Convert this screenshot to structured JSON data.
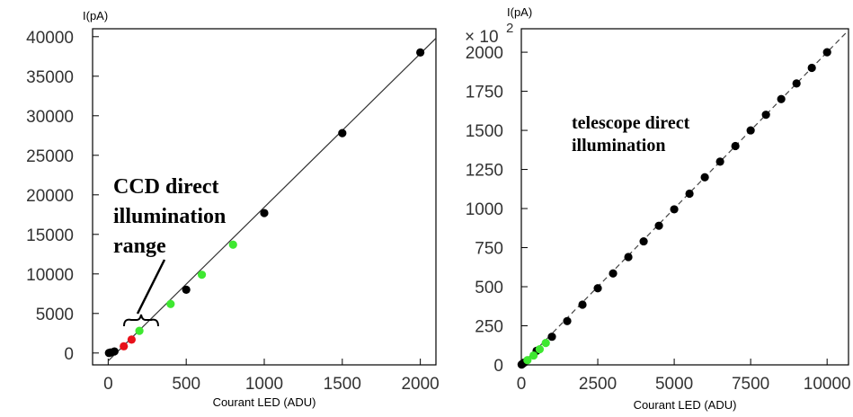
{
  "chart_data": [
    {
      "type": "scatter",
      "ylabel": "I(pA)",
      "xlabel": "Courant LED (ADU)",
      "xlim": [
        -100,
        2100
      ],
      "ylim": [
        -1500,
        41000
      ],
      "xticks": [
        "0",
        "500",
        "1000",
        "1500",
        "2000"
      ],
      "yticks": [
        "0",
        "5000",
        "10000",
        "15000",
        "20000",
        "25000",
        "30000",
        "35000",
        "40000"
      ],
      "annotation": [
        "CCD direct",
        "illumination",
        "range"
      ],
      "fit_line": {
        "style": "solid",
        "from": [
          0,
          -1000
        ],
        "to": [
          2100,
          39800
        ]
      },
      "series": [
        {
          "color": "#000000",
          "points": [
            [
              5,
              5
            ],
            [
              15,
              60
            ],
            [
              40,
              200
            ],
            [
              500,
              8000
            ],
            [
              1000,
              17700
            ],
            [
              1500,
              27800
            ],
            [
              2000,
              38000
            ]
          ]
        },
        {
          "color": "#e8101a",
          "points": [
            [
              100,
              850
            ],
            [
              150,
              1700
            ]
          ]
        },
        {
          "color": "#3ee830",
          "points": [
            [
              200,
              2800
            ],
            [
              400,
              6200
            ],
            [
              600,
              9900
            ],
            [
              800,
              13700
            ]
          ]
        }
      ],
      "grid": false
    },
    {
      "type": "scatter",
      "ylabel": "I(pA)",
      "xlabel": "Courant LED (ADU)",
      "multiplier": "× 10",
      "multiplier_exp": "2",
      "xlim": [
        0,
        10700
      ],
      "ylim": [
        0,
        2150
      ],
      "xticks": [
        "0",
        "2500",
        "5000",
        "7500",
        "10000"
      ],
      "yticks": [
        "0",
        "250",
        "500",
        "750",
        "1000",
        "1250",
        "1500",
        "1750",
        "2000"
      ],
      "annotation": [
        "telescope direct",
        "illumination"
      ],
      "fit_line": {
        "style": "dashed",
        "from": [
          0,
          0
        ],
        "to": [
          10700,
          2140
        ]
      },
      "series": [
        {
          "color": "#000000",
          "points": [
            [
              10,
              2
            ],
            [
              30,
              5
            ],
            [
              60,
              10
            ],
            [
              100,
              15
            ],
            [
              500,
              90
            ],
            [
              1000,
              180
            ],
            [
              1500,
              280
            ],
            [
              2000,
              385
            ],
            [
              2500,
              490
            ],
            [
              3000,
              585
            ],
            [
              3500,
              690
            ],
            [
              4000,
              790
            ],
            [
              4500,
              890
            ],
            [
              5000,
              995
            ],
            [
              5500,
              1095
            ],
            [
              6000,
              1200
            ],
            [
              6500,
              1300
            ],
            [
              7000,
              1400
            ],
            [
              7500,
              1500
            ],
            [
              8000,
              1600
            ],
            [
              8500,
              1700
            ],
            [
              9000,
              1800
            ],
            [
              9500,
              1900
            ],
            [
              10000,
              2000
            ]
          ]
        },
        {
          "color": "#3ee830",
          "points": [
            [
              200,
              30
            ],
            [
              400,
              60
            ],
            [
              600,
              100
            ],
            [
              800,
              140
            ]
          ]
        }
      ],
      "grid": false
    }
  ]
}
